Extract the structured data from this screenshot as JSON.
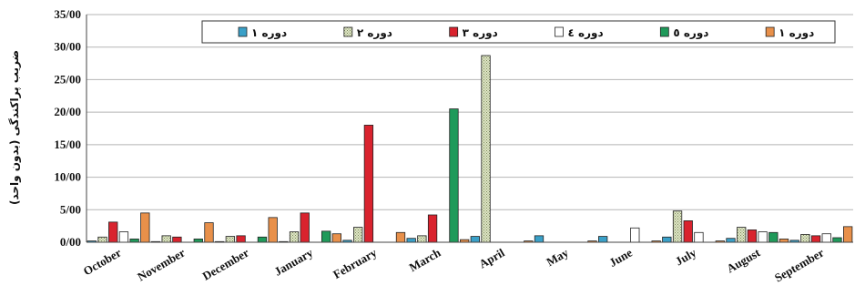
{
  "chart_data": {
    "type": "bar",
    "ylabel": "ضریب پراکندگی (بدون واحد)",
    "ylim": [
      0,
      35
    ],
    "yticks": [
      "0/00",
      "5/00",
      "10/00",
      "15/00",
      "20/00",
      "25/00",
      "30/00",
      "35/00"
    ],
    "grid": true,
    "legend_position": "top",
    "categories": [
      "October",
      "November",
      "December",
      "January",
      "February",
      "March",
      "April",
      "May",
      "June",
      "July",
      "August",
      "September"
    ],
    "series": [
      {
        "name": "دوره ۱",
        "color": "#3aa0c8",
        "pattern": "solid",
        "values": [
          0.2,
          0.1,
          0.1,
          0.1,
          0.3,
          0.6,
          0.9,
          1.0,
          0.9,
          0.8,
          0.6,
          0.3
        ]
      },
      {
        "name": "دوره ۲",
        "color": "#cfd8b5",
        "pattern": "stipple",
        "values": [
          0.8,
          1.0,
          0.9,
          1.6,
          2.3,
          1.0,
          28.7,
          0.0,
          0.0,
          4.8,
          2.3,
          1.2
        ]
      },
      {
        "name": "دوره ۳",
        "color": "#d9232e",
        "pattern": "solid",
        "values": [
          3.1,
          0.8,
          1.0,
          4.5,
          18.0,
          4.2,
          0.0,
          0.0,
          0.0,
          3.3,
          1.9,
          1.0
        ]
      },
      {
        "name": "دوره ٤",
        "color": "#ffffff",
        "pattern": "solid",
        "values": [
          1.6,
          0.0,
          0.0,
          0.0,
          0.0,
          0.0,
          0.0,
          0.0,
          2.2,
          1.5,
          1.6,
          1.3
        ]
      },
      {
        "name": "دوره ٥",
        "color": "#1f9a5a",
        "pattern": "solid",
        "values": [
          0.5,
          0.5,
          0.8,
          1.7,
          0.0,
          20.5,
          0.0,
          0.0,
          0.0,
          0.0,
          1.5,
          0.7
        ]
      },
      {
        "name": "دوره ۱",
        "color": "#e8904a",
        "pattern": "solid",
        "values": [
          4.5,
          3.0,
          3.8,
          1.3,
          1.5,
          0.4,
          0.2,
          0.2,
          0.2,
          0.2,
          0.5,
          2.4
        ]
      }
    ]
  }
}
